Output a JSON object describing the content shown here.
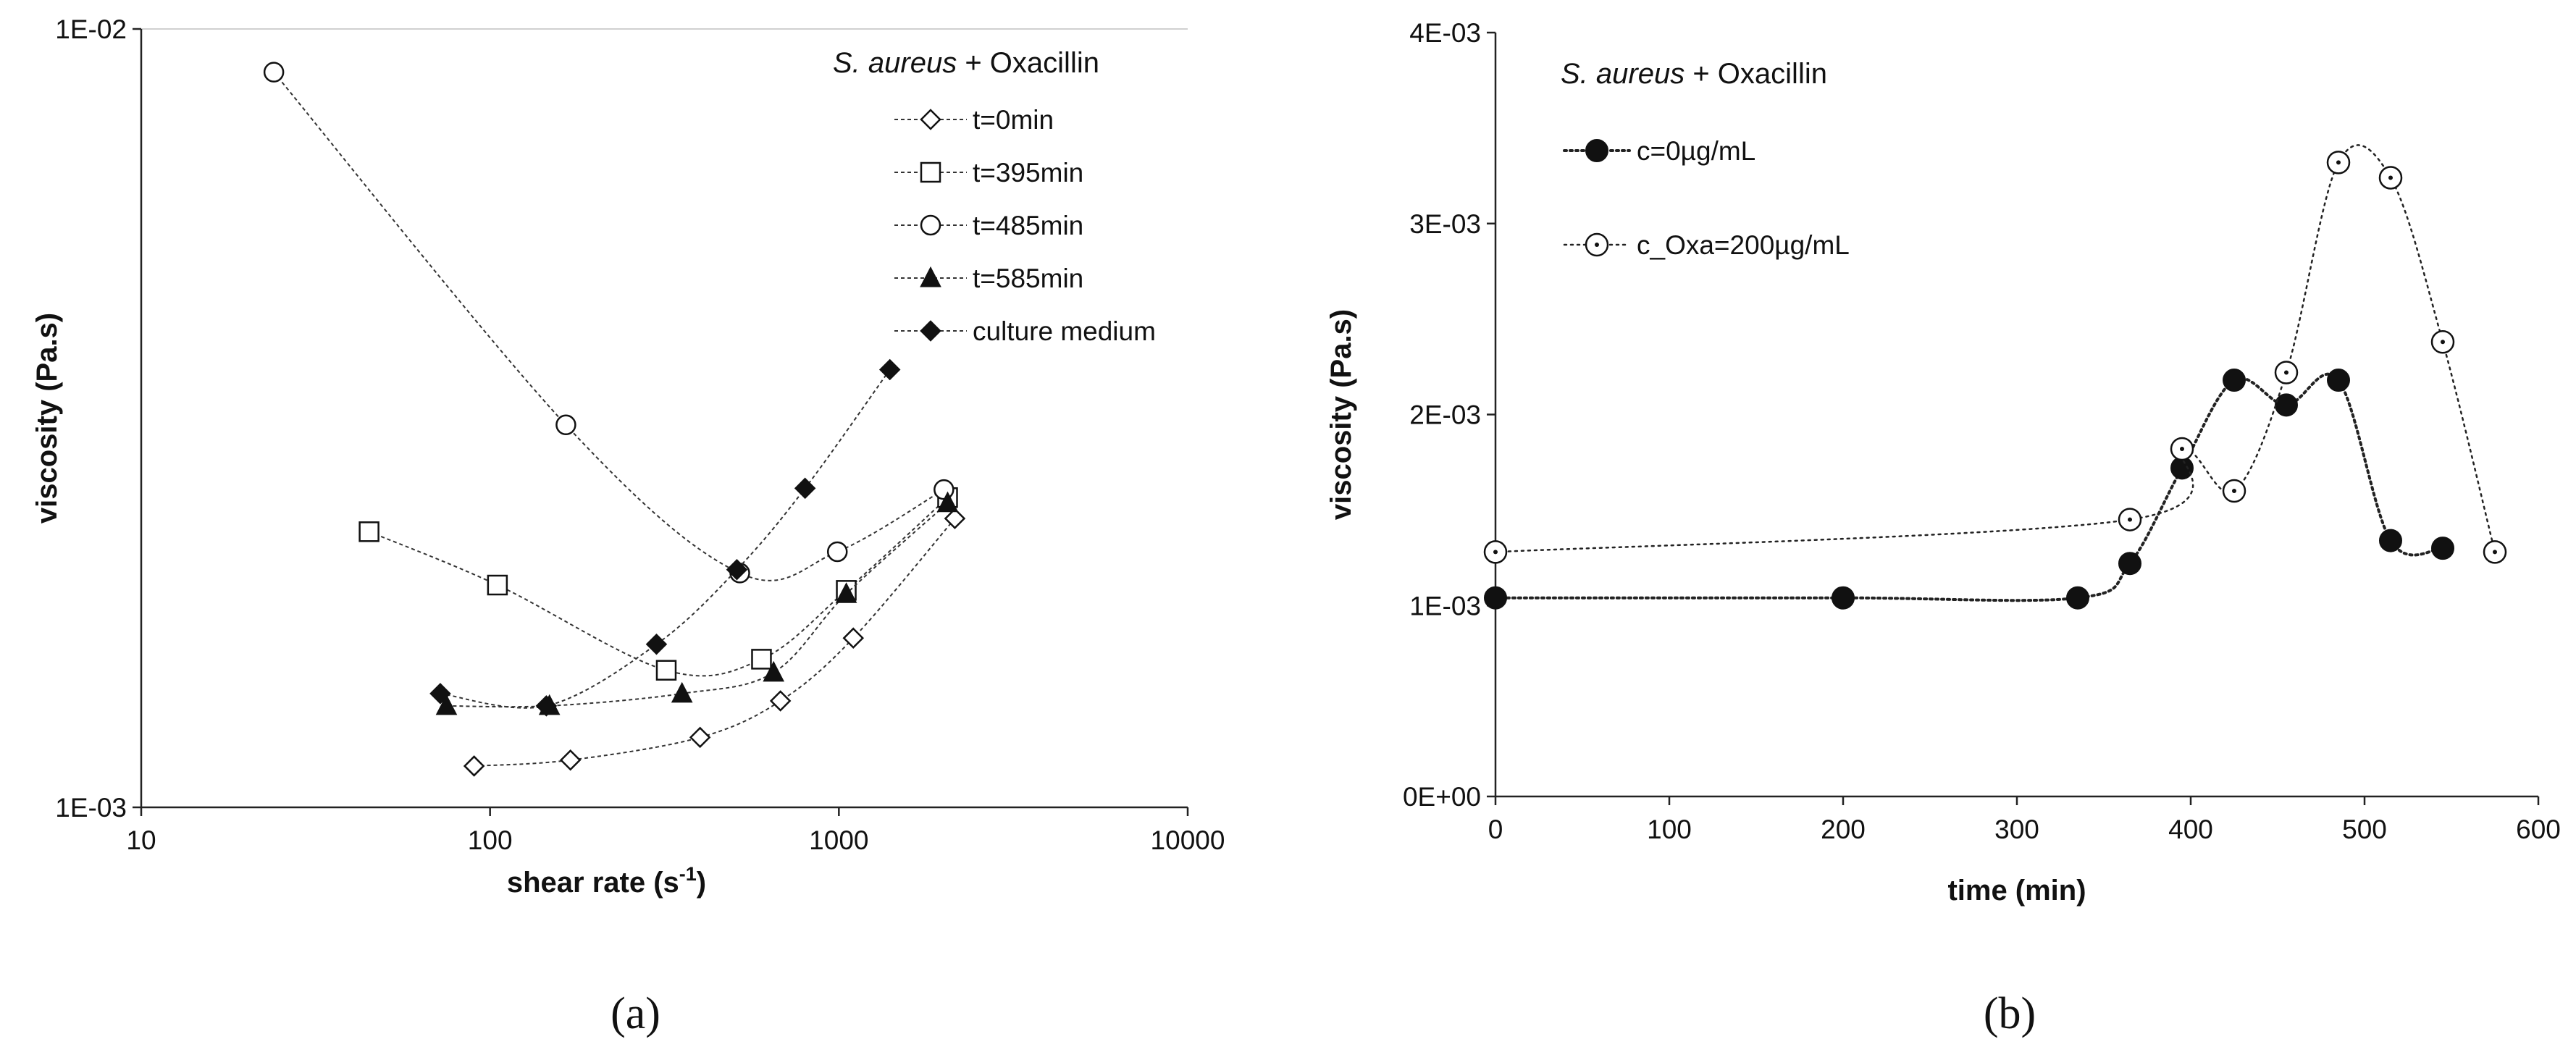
{
  "chart_data": [
    {
      "type": "line",
      "panel_label": "(a)",
      "title_italic": "S. aureus",
      "title_rest": " + Oxacillin",
      "xlabel_main": "shear rate (s",
      "xlabel_sup": "-1",
      "xlabel_end": ")",
      "ylabel": "viscosity (Pa.s)",
      "xscale": "log",
      "yscale": "log",
      "xlim": [
        10,
        10000
      ],
      "ylim": [
        0.001,
        0.01
      ],
      "x_ticks": [
        10,
        100,
        1000,
        10000
      ],
      "x_tick_labels": [
        "10",
        "100",
        "1000",
        "10000"
      ],
      "y_ticks": [
        0.001,
        0.01
      ],
      "y_tick_labels": [
        "1E-03",
        "1E-02"
      ],
      "legend_position": "top-right",
      "series": [
        {
          "name": "t=0min",
          "marker": "diamond-open",
          "x": [
            90,
            170,
            400,
            680,
            1100,
            2150
          ],
          "y": [
            0.00113,
            0.00115,
            0.00123,
            0.00137,
            0.00165,
            0.00235
          ]
        },
        {
          "name": "t=395min",
          "marker": "square-open",
          "x": [
            45,
            105,
            320,
            600,
            1050,
            2050
          ],
          "y": [
            0.00226,
            0.00193,
            0.0015,
            0.00155,
            0.0019,
            0.0025
          ]
        },
        {
          "name": "t=485min",
          "marker": "circle-open",
          "x": [
            24,
            165,
            520,
            990,
            2000
          ],
          "y": [
            0.0088,
            0.0031,
            0.002,
            0.00213,
            0.00256
          ]
        },
        {
          "name": "t=585min",
          "marker": "triangle-filled",
          "x": [
            75,
            148,
            355,
            650,
            1050,
            2050
          ],
          "y": [
            0.00135,
            0.00135,
            0.0014,
            0.00149,
            0.00188,
            0.00246
          ]
        },
        {
          "name": "culture medium",
          "marker": "diamond-filled",
          "x": [
            72,
            145,
            300,
            510,
            800,
            1400
          ],
          "y": [
            0.0014,
            0.00135,
            0.00162,
            0.00202,
            0.00257,
            0.00365
          ]
        }
      ]
    },
    {
      "type": "line",
      "panel_label": "(b)",
      "title_italic": "S. aureus",
      "title_rest": " + Oxacillin",
      "xlabel": "time (min)",
      "ylabel": "viscosity (Pa.s)",
      "xlim": [
        0,
        600
      ],
      "ylim": [
        0,
        0.004
      ],
      "x_ticks": [
        0,
        100,
        200,
        300,
        400,
        500,
        600
      ],
      "x_tick_labels": [
        "0",
        "100",
        "200",
        "300",
        "400",
        "500",
        "600"
      ],
      "y_ticks": [
        0,
        0.001,
        0.002,
        0.003,
        0.004
      ],
      "y_tick_labels": [
        "0E+00",
        "1E-03",
        "2E-03",
        "3E-03",
        "4E-03"
      ],
      "legend_position": "top-left",
      "series": [
        {
          "name": "c=0µg/mL",
          "marker": "circle-filled",
          "x": [
            0,
            200,
            335,
            365,
            395,
            425,
            455,
            485,
            515,
            545
          ],
          "y": [
            0.00104,
            0.00104,
            0.00104,
            0.00122,
            0.00172,
            0.00218,
            0.00205,
            0.00218,
            0.00134,
            0.0013
          ]
        },
        {
          "name": "c_Oxa=200µg/mL",
          "marker": "circle-dot",
          "x": [
            0,
            365,
            395,
            425,
            455,
            485,
            515,
            545,
            575
          ],
          "y": [
            0.00128,
            0.00145,
            0.00182,
            0.0016,
            0.00222,
            0.00332,
            0.00324,
            0.00238,
            0.00128
          ]
        }
      ]
    }
  ]
}
